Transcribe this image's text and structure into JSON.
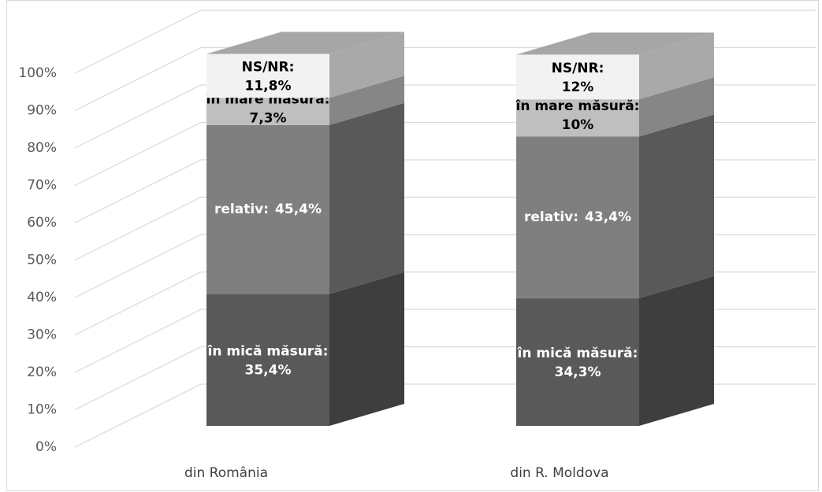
{
  "chart_data": {
    "type": "bar3d_stacked",
    "categories": [
      "din România",
      "din R. Moldova"
    ],
    "series": [
      {
        "name": "în mică măsură:",
        "color": "#595959",
        "values": [
          35.4,
          34.3
        ],
        "value_labels": [
          "35,4%",
          "34,3%"
        ]
      },
      {
        "name": "relativ:",
        "color": "#7f7f7f",
        "values": [
          45.4,
          43.4
        ],
        "value_labels": [
          "45,4%",
          "43,4%"
        ]
      },
      {
        "name": "în mare măsură:",
        "color": "#bfbfbf",
        "values": [
          7.3,
          10
        ],
        "value_labels": [
          "7,3%",
          "10%"
        ]
      },
      {
        "name": "NS/NR:",
        "color": "#f2f2f2",
        "values": [
          11.8,
          12
        ],
        "value_labels": [
          "11,8%",
          "12%"
        ]
      }
    ],
    "ylim": [
      0,
      100
    ],
    "yticks": [
      {
        "value": 0,
        "label": "0%"
      },
      {
        "value": 10,
        "label": "10%"
      },
      {
        "value": 20,
        "label": "20%"
      },
      {
        "value": 30,
        "label": "30%"
      },
      {
        "value": 40,
        "label": "40%"
      },
      {
        "value": 50,
        "label": "50%"
      },
      {
        "value": 60,
        "label": "60%"
      },
      {
        "value": 70,
        "label": "70%"
      },
      {
        "value": 80,
        "label": "80%"
      },
      {
        "value": 90,
        "label": "90%"
      },
      {
        "value": 100,
        "label": "100%"
      }
    ],
    "grid": true
  }
}
